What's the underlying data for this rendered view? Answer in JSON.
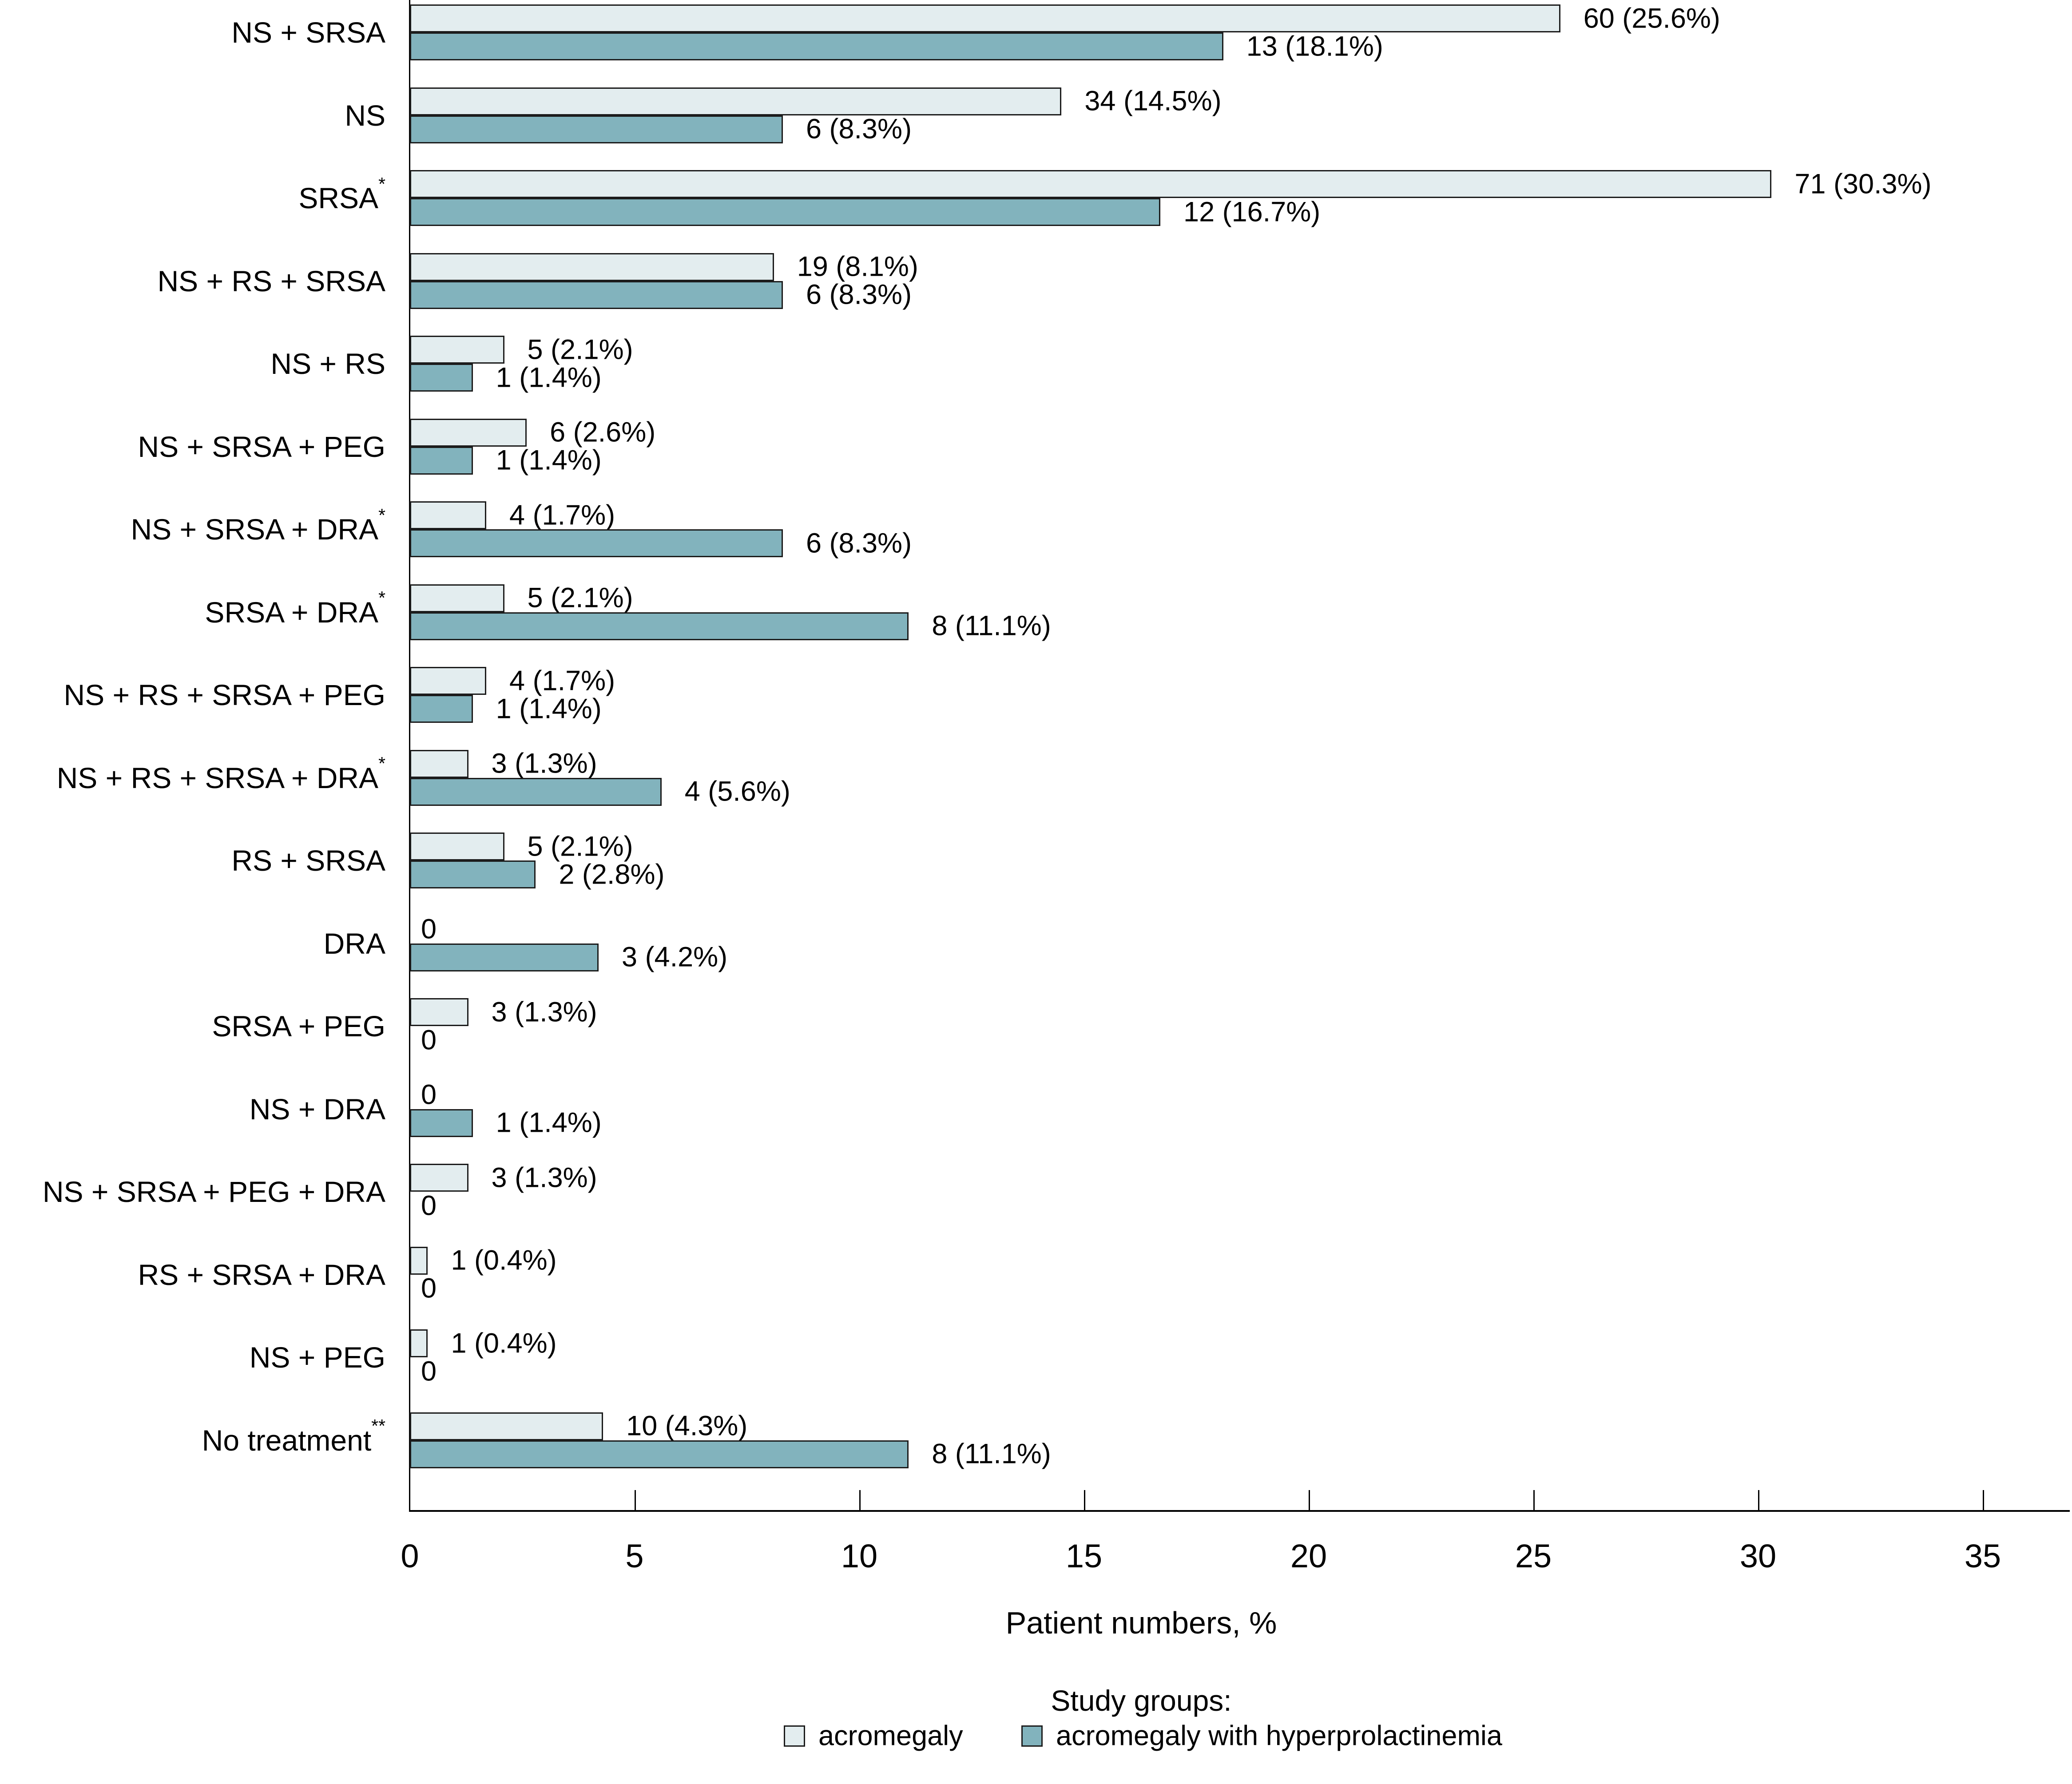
{
  "chart_data": {
    "type": "bar",
    "orientation": "horizontal",
    "xlabel": "Patient numbers, %",
    "x_ticks": [
      0,
      5,
      10,
      15,
      20,
      25,
      30,
      35
    ],
    "xlim": [
      0,
      37
    ],
    "grid": false,
    "legend_position": "bottom-center",
    "legend_title": "Study groups:",
    "zero_label": "0",
    "series": [
      {
        "name": "acromegaly",
        "color": "#e3edef"
      },
      {
        "name": "acromegaly with hyperprolactinemia",
        "color": "#82b3bd"
      }
    ],
    "rows": [
      {
        "category": "NS + SRSA",
        "sup": "",
        "acromegaly_pct": 25.6,
        "acromegaly_label": "60 (25.6%)",
        "hyper_pct": 18.1,
        "hyper_label": "13 (18.1%)"
      },
      {
        "category": "NS",
        "sup": "",
        "acromegaly_pct": 14.5,
        "acromegaly_label": "34 (14.5%)",
        "hyper_pct": 8.3,
        "hyper_label": "6 (8.3%)"
      },
      {
        "category": "SRSA",
        "sup": "*",
        "acromegaly_pct": 30.3,
        "acromegaly_label": "71 (30.3%)",
        "hyper_pct": 16.7,
        "hyper_label": "12 (16.7%)"
      },
      {
        "category": "NS + RS + SRSA",
        "sup": "",
        "acromegaly_pct": 8.1,
        "acromegaly_label": "19 (8.1%)",
        "hyper_pct": 8.3,
        "hyper_label": "6 (8.3%)"
      },
      {
        "category": "NS + RS",
        "sup": "",
        "acromegaly_pct": 2.1,
        "acromegaly_label": "5 (2.1%)",
        "hyper_pct": 1.4,
        "hyper_label": "1 (1.4%)"
      },
      {
        "category": "NS + SRSA + PEG",
        "sup": "",
        "acromegaly_pct": 2.6,
        "acromegaly_label": "6 (2.6%)",
        "hyper_pct": 1.4,
        "hyper_label": "1 (1.4%)"
      },
      {
        "category": "NS + SRSA + DRA",
        "sup": "*",
        "acromegaly_pct": 1.7,
        "acromegaly_label": "4 (1.7%)",
        "hyper_pct": 8.3,
        "hyper_label": "6 (8.3%)"
      },
      {
        "category": "SRSA + DRA",
        "sup": "*",
        "acromegaly_pct": 2.1,
        "acromegaly_label": "5 (2.1%)",
        "hyper_pct": 11.1,
        "hyper_label": "8 (11.1%)"
      },
      {
        "category": "NS + RS + SRSA + PEG",
        "sup": "",
        "acromegaly_pct": 1.7,
        "acromegaly_label": "4 (1.7%)",
        "hyper_pct": 1.4,
        "hyper_label": "1 (1.4%)"
      },
      {
        "category": "NS + RS + SRSA + DRA",
        "sup": "*",
        "acromegaly_pct": 1.3,
        "acromegaly_label": "3 (1.3%)",
        "hyper_pct": 5.6,
        "hyper_label": "4 (5.6%)"
      },
      {
        "category": "RS + SRSA",
        "sup": "",
        "acromegaly_pct": 2.1,
        "acromegaly_label": "5 (2.1%)",
        "hyper_pct": 2.8,
        "hyper_label": "2 (2.8%)"
      },
      {
        "category": "DRA",
        "sup": "",
        "acromegaly_pct": 0,
        "acromegaly_label": "0",
        "hyper_pct": 4.2,
        "hyper_label": "3 (4.2%)"
      },
      {
        "category": "SRSA + PEG",
        "sup": "",
        "acromegaly_pct": 1.3,
        "acromegaly_label": "3 (1.3%)",
        "hyper_pct": 0,
        "hyper_label": "0"
      },
      {
        "category": "NS + DRA",
        "sup": "",
        "acromegaly_pct": 0,
        "acromegaly_label": "0",
        "hyper_pct": 1.4,
        "hyper_label": "1 (1.4%)"
      },
      {
        "category": "NS + SRSA + PEG + DRA",
        "sup": "",
        "acromegaly_pct": 1.3,
        "acromegaly_label": "3 (1.3%)",
        "hyper_pct": 0,
        "hyper_label": "0"
      },
      {
        "category": "RS + SRSA + DRA",
        "sup": "",
        "acromegaly_pct": 0.4,
        "acromegaly_label": "1 (0.4%)",
        "hyper_pct": 0,
        "hyper_label": "0"
      },
      {
        "category": "NS + PEG",
        "sup": "",
        "acromegaly_pct": 0.4,
        "acromegaly_label": "1 (0.4%)",
        "hyper_pct": 0,
        "hyper_label": "0"
      },
      {
        "category": "No treatment",
        "sup": "**",
        "acromegaly_pct": 4.3,
        "acromegaly_label": "10 (4.3%)",
        "hyper_pct": 11.1,
        "hyper_label": "8 (11.1%)"
      }
    ]
  }
}
